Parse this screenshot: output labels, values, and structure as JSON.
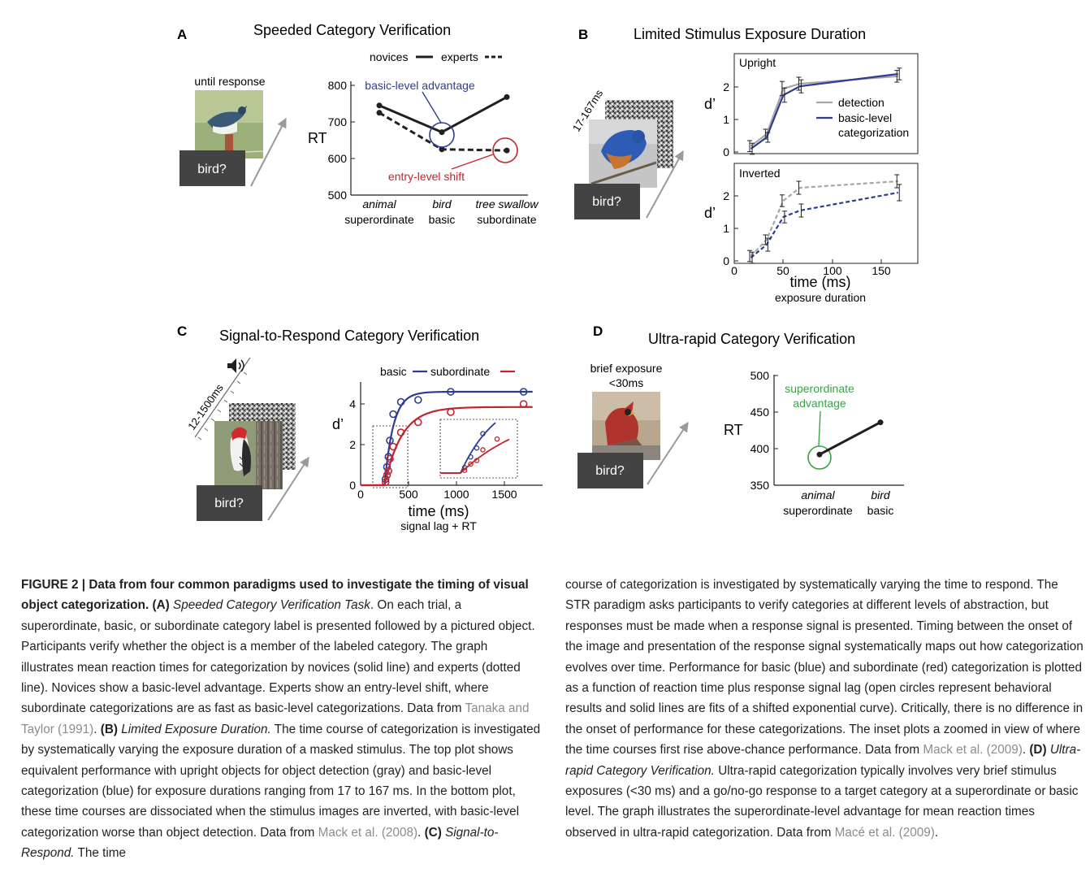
{
  "panels": {
    "A": {
      "letter": "A",
      "title": "Speeded Category Verification",
      "stimulus_caption": "until response",
      "prompt": "bird?",
      "ylabel": "RT",
      "legend": {
        "novices": "novices",
        "experts": "experts"
      },
      "annotations": {
        "basic": "basic-level advantage",
        "entry": "entry-level shift"
      },
      "categories": [
        {
          "name": "animal",
          "level": "superordinate"
        },
        {
          "name": "bird",
          "level": "basic"
        },
        {
          "name": "tree swallow",
          "level": "subordinate"
        }
      ],
      "yticks": [
        "500",
        "600",
        "700",
        "800"
      ]
    },
    "B": {
      "letter": "B",
      "title": "Limited Stimulus Exposure Duration",
      "timing": "17-167ms",
      "prompt": "bird?",
      "ylabel": "d’",
      "upright_label": "Upright",
      "inverted_label": "Inverted",
      "legend": {
        "detection": "detection",
        "basic_1": "basic-level",
        "basic_2": "categorization"
      },
      "xlabel": "time (ms)",
      "xlabel_sub": "exposure duration",
      "yticks": [
        "0",
        "1",
        "2"
      ],
      "xticks": [
        "0",
        "50",
        "100",
        "150"
      ]
    },
    "C": {
      "letter": "C",
      "title": "Signal-to-Respond Category Verification",
      "timing": "12-1500ms",
      "prompt": "bird?",
      "ylabel": "d’",
      "legend": {
        "basic": "basic",
        "subordinate": "subordinate"
      },
      "xlabel": "time (ms)",
      "xlabel_sub": "signal lag + RT",
      "yticks": [
        "0",
        "2",
        "4"
      ],
      "xticks": [
        "0",
        "500",
        "1000",
        "1500"
      ]
    },
    "D": {
      "letter": "D",
      "title": "Ultra-rapid Category Verification",
      "stimulus_caption_1": "brief exposure",
      "stimulus_caption_2": "<30ms",
      "prompt": "bird?",
      "ylabel": "RT",
      "annotation_1": "superordinate",
      "annotation_2": "advantage",
      "categories": [
        {
          "name": "animal",
          "level": "superordinate"
        },
        {
          "name": "bird",
          "level": "basic"
        }
      ],
      "yticks": [
        "350",
        "400",
        "450",
        "500"
      ]
    }
  },
  "colors": {
    "ink": "#231f20",
    "basic_blue": "#2e3d8f",
    "sub_red": "#c0262d",
    "detection_gray": "#a6a6a6",
    "super_green": "#3aa346",
    "label_box": "#434343",
    "ref_gray": "#8c8c8c"
  },
  "chart_data": [
    {
      "panel": "A",
      "type": "line",
      "categories": [
        "animal",
        "bird",
        "tree swallow"
      ],
      "series": [
        {
          "name": "novices",
          "values": [
            745,
            672,
            768
          ]
        },
        {
          "name": "experts",
          "values": [
            725,
            625,
            622
          ]
        }
      ],
      "ylabel": "RT",
      "ylim": [
        500,
        820
      ]
    },
    {
      "panel": "B-upright",
      "type": "line",
      "x": [
        17,
        33,
        50,
        67,
        167
      ],
      "series": [
        {
          "name": "detection",
          "values": [
            0.18,
            0.55,
            1.95,
            2.1,
            2.33
          ],
          "errors": [
            0.17,
            0.15,
            0.22,
            0.2,
            0.18
          ]
        },
        {
          "name": "basic-level categorization",
          "values": [
            0.1,
            0.45,
            1.75,
            2.02,
            2.4
          ],
          "errors": [
            0.17,
            0.15,
            0.22,
            0.2,
            0.18
          ]
        }
      ],
      "xlabel": "time (ms)",
      "ylabel": "d’",
      "xlim": [
        0,
        180
      ],
      "ylim": [
        0,
        2.8
      ]
    },
    {
      "panel": "B-inverted",
      "type": "line",
      "x": [
        17,
        33,
        50,
        67,
        167
      ],
      "series": [
        {
          "name": "detection",
          "values": [
            0.15,
            0.65,
            1.85,
            2.25,
            2.45
          ],
          "errors": [
            0.17,
            0.15,
            0.18,
            0.2,
            0.2
          ]
        },
        {
          "name": "basic-level categorization",
          "values": [
            0.1,
            0.5,
            1.35,
            1.55,
            2.1
          ],
          "errors": [
            0.17,
            0.2,
            0.18,
            0.2,
            0.25
          ]
        }
      ],
      "xlabel": "time (ms)",
      "ylabel": "d’",
      "xlim": [
        0,
        180
      ],
      "ylim": [
        0,
        2.8
      ]
    },
    {
      "panel": "C",
      "type": "scatter",
      "series": [
        {
          "name": "basic",
          "points": [
            [
              260,
              0.3
            ],
            [
              275,
              0.9
            ],
            [
              290,
              1.4
            ],
            [
              305,
              2.2
            ],
            [
              340,
              3.5
            ],
            [
              420,
              4.1
            ],
            [
              600,
              4.2
            ],
            [
              940,
              4.6
            ],
            [
              1700,
              4.6
            ]
          ],
          "fit": {
            "asymptote": 4.6,
            "onset": 250,
            "rate": 0.011
          }
        },
        {
          "name": "subordinate",
          "points": [
            [
              260,
              0.15
            ],
            [
              275,
              0.5
            ],
            [
              290,
              0.7
            ],
            [
              305,
              1.3
            ],
            [
              340,
              1.9
            ],
            [
              420,
              2.6
            ],
            [
              600,
              3.1
            ],
            [
              940,
              3.6
            ],
            [
              1700,
              4.0
            ]
          ],
          "fit": {
            "asymptote": 3.85,
            "onset": 250,
            "rate": 0.0056
          }
        }
      ],
      "xlabel": "time (ms)",
      "ylabel": "d’",
      "xlim": [
        0,
        1800
      ],
      "ylim": [
        0,
        5.2
      ]
    },
    {
      "panel": "D",
      "type": "line",
      "categories": [
        "animal",
        "bird"
      ],
      "values": [
        392,
        436
      ],
      "ylabel": "RT",
      "ylim": [
        350,
        500
      ]
    }
  ],
  "caption": {
    "fig_label": "FIGURE 2 | Data from four common paradigms used to investigate the timing of visual object categorization.",
    "a_tag": "(A)",
    "a_task": "Speeded Category Verification Task",
    "a_text": ". On each trial, a superordinate, basic, or subordinate category label is presented followed by a pictured object. Participants verify whether the object is a member of the labeled category. The graph illustrates mean reaction times for categorization by novices (solid line) and experts (dotted line). Novices show a basic-level advantage. Experts show an entry-level shift, where subordinate categorizations are as fast as basic-level categorizations. Data from",
    "a_ref": "Tanaka and Taylor (1991)",
    "b_tag": "(B)",
    "b_task": "Limited Exposure Duration.",
    "b_text": "The time course of categorization is investigated by systematically varying the exposure duration of a masked stimulus. The top plot shows equivalent performance with upright objects for object detection (gray) and basic-level categorization (blue) for exposure durations ranging from 17 to 167 ms. In the bottom plot, these time courses are dissociated when the stimulus images are inverted, with basic-level categorization worse than object detection. Data from",
    "b_ref": "Mack et al. (2008)",
    "c_tag": "(C)",
    "c_task": "Signal-to-Respond.",
    "c_text_1": "The time",
    "c_text_2": "course of categorization is investigated by systematically varying the time to respond. The STR paradigm asks participants to verify categories at different levels of abstraction, but responses must be made when a response signal is presented. Timing between the onset of the image and presentation of the response signal systematically maps out how categorization evolves over time. Performance for basic (blue) and subordinate (red) categorization is plotted as a function of reaction time plus response signal lag (open circles represent behavioral results and solid lines are fits of a shifted exponential curve). Critically, there is no difference in the onset of performance for these categorizations. The inset plots a zoomed in view of where the time courses first rise above-chance performance. Data from",
    "c_ref": "Mack et al. (2009)",
    "d_tag": "(D)",
    "d_task": "Ultra-rapid Category Verification.",
    "d_text": "Ultra-rapid categorization typically involves very brief stimulus exposures (<30 ms) and a go/no-go response to a target category at a superordinate or basic level. The graph illustrates the superordinate-level advantage for mean reaction times observed in ultra-rapid categorization. Data from",
    "d_ref": "Macé et al. (2009)"
  }
}
